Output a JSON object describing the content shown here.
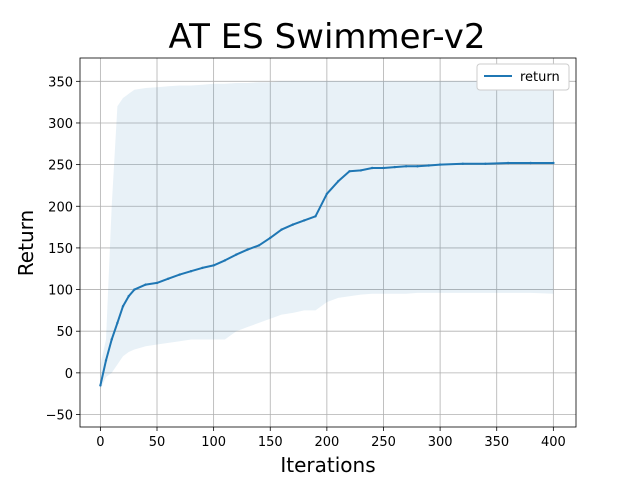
{
  "chart_data": {
    "type": "line",
    "title": "AT ES Swimmer-v2",
    "xlabel": "Iterations",
    "ylabel": "Return",
    "xlim": [
      -18,
      420
    ],
    "ylim": [
      -65,
      378
    ],
    "xticks": [
      0,
      50,
      100,
      150,
      200,
      250,
      300,
      350,
      400
    ],
    "yticks": [
      -50,
      0,
      50,
      100,
      150,
      200,
      250,
      300,
      350
    ],
    "grid": true,
    "legend_position": "top-right",
    "series": [
      {
        "name": "return",
        "color": "#1f77b4",
        "band_color": "#1f77b4",
        "band_opacity": 0.1,
        "x": [
          0,
          5,
          10,
          15,
          20,
          25,
          30,
          40,
          50,
          60,
          70,
          80,
          90,
          100,
          110,
          120,
          130,
          140,
          150,
          160,
          170,
          180,
          190,
          200,
          210,
          220,
          230,
          240,
          250,
          260,
          270,
          280,
          290,
          300,
          320,
          340,
          360,
          380,
          400
        ],
        "values": [
          -15,
          15,
          40,
          60,
          80,
          92,
          100,
          106,
          108,
          113,
          118,
          122,
          126,
          129,
          135,
          142,
          148,
          153,
          162,
          172,
          178,
          183,
          188,
          215,
          230,
          242,
          243,
          246,
          246,
          247,
          248,
          248,
          249,
          250,
          251,
          251,
          252,
          252,
          252
        ],
        "upper": [
          10,
          40,
          200,
          320,
          330,
          335,
          340,
          342,
          343,
          344,
          345,
          345,
          346,
          347,
          347,
          348,
          348,
          349,
          349,
          350,
          350,
          350,
          350,
          350,
          350,
          350,
          350,
          350,
          350,
          350,
          350,
          350,
          350,
          350,
          350,
          350,
          350,
          350,
          350
        ],
        "lower": [
          -20,
          -5,
          0,
          10,
          20,
          25,
          28,
          32,
          34,
          36,
          38,
          40,
          40,
          40,
          40,
          50,
          55,
          60,
          65,
          70,
          72,
          75,
          75,
          85,
          90,
          92,
          94,
          95,
          95,
          95,
          95,
          96,
          96,
          96,
          96,
          96,
          96,
          96,
          95
        ]
      }
    ]
  }
}
